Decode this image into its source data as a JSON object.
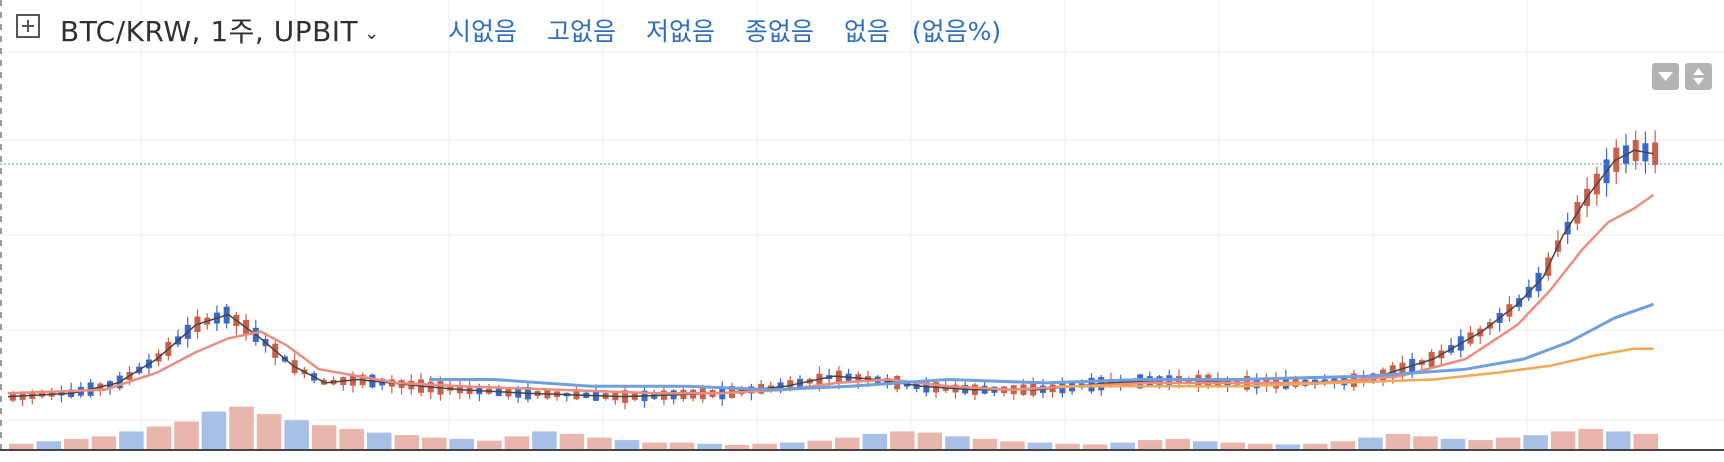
{
  "header": {
    "symbol": "BTC/KRW, 1주, UPBIT",
    "open": "시없음",
    "high": "고없음",
    "low": "저없음",
    "close": "종없음",
    "change": "없음",
    "change_pct": "(없음%)"
  },
  "colors": {
    "up": "#c9604a",
    "down": "#3a67c8",
    "ma_short": "#444444",
    "ma_mid": "#ec8d80",
    "ma_long": "#6f9fdf",
    "ma_longest": "#f1a755",
    "vol_up": "#e8b6ac",
    "vol_down": "#a9c0e6",
    "price_line": "#5b8ed6",
    "grid": "#e9eef3"
  },
  "chart_data": {
    "type": "candlestick",
    "title": "BTC/KRW, 1주, UPBIT",
    "grid": true,
    "price_line_level": 0.69,
    "series": [
      {
        "name": "",
        "kind": "ma_short",
        "points": [
          [
            0,
            0.01
          ],
          [
            20,
            0.02
          ],
          [
            34,
            0.05
          ],
          [
            46,
            0.12
          ],
          [
            58,
            0.22
          ],
          [
            68,
            0.25
          ],
          [
            78,
            0.18
          ],
          [
            88,
            0.1
          ],
          [
            98,
            0.05
          ],
          [
            108,
            0.06
          ],
          [
            118,
            0.05
          ],
          [
            128,
            0.04
          ],
          [
            140,
            0.03
          ],
          [
            160,
            0.02
          ],
          [
            190,
            0.01
          ],
          [
            220,
            0.02
          ],
          [
            240,
            0.04
          ],
          [
            255,
            0.07
          ],
          [
            268,
            0.06
          ],
          [
            282,
            0.04
          ],
          [
            298,
            0.03
          ],
          [
            318,
            0.03
          ],
          [
            340,
            0.05
          ],
          [
            362,
            0.06
          ],
          [
            380,
            0.05
          ],
          [
            400,
            0.05
          ],
          [
            420,
            0.06
          ],
          [
            440,
            0.12
          ],
          [
            455,
            0.2
          ],
          [
            466,
            0.28
          ],
          [
            474,
            0.36
          ],
          [
            480,
            0.48
          ],
          [
            488,
            0.6
          ],
          [
            496,
            0.7
          ],
          [
            502,
            0.73
          ],
          [
            508,
            0.72
          ]
        ]
      },
      {
        "name": "",
        "kind": "ma_mid",
        "points": [
          [
            0,
            0.02
          ],
          [
            30,
            0.03
          ],
          [
            46,
            0.08
          ],
          [
            58,
            0.14
          ],
          [
            68,
            0.18
          ],
          [
            78,
            0.2
          ],
          [
            86,
            0.16
          ],
          [
            96,
            0.09
          ],
          [
            108,
            0.07
          ],
          [
            120,
            0.05
          ],
          [
            140,
            0.04
          ],
          [
            170,
            0.03
          ],
          [
            200,
            0.02
          ],
          [
            220,
            0.02
          ],
          [
            240,
            0.03
          ],
          [
            256,
            0.05
          ],
          [
            272,
            0.06
          ],
          [
            290,
            0.04
          ],
          [
            310,
            0.03
          ],
          [
            330,
            0.04
          ],
          [
            352,
            0.05
          ],
          [
            380,
            0.05
          ],
          [
            405,
            0.05
          ],
          [
            430,
            0.07
          ],
          [
            450,
            0.12
          ],
          [
            466,
            0.22
          ],
          [
            476,
            0.32
          ],
          [
            486,
            0.44
          ],
          [
            494,
            0.52
          ],
          [
            502,
            0.56
          ],
          [
            508,
            0.6
          ]
        ]
      },
      {
        "name": "",
        "kind": "ma_long",
        "points": [
          [
            130,
            0.06
          ],
          [
            150,
            0.06
          ],
          [
            180,
            0.04
          ],
          [
            210,
            0.04
          ],
          [
            236,
            0.03
          ],
          [
            260,
            0.04
          ],
          [
            290,
            0.06
          ],
          [
            320,
            0.05
          ],
          [
            350,
            0.06
          ],
          [
            380,
            0.06
          ],
          [
            420,
            0.07
          ],
          [
            450,
            0.09
          ],
          [
            468,
            0.12
          ],
          [
            482,
            0.17
          ],
          [
            496,
            0.24
          ],
          [
            508,
            0.28
          ]
        ]
      },
      {
        "name": "",
        "kind": "ma_longest",
        "points": [
          [
            324,
            0.04
          ],
          [
            350,
            0.04
          ],
          [
            380,
            0.04
          ],
          [
            410,
            0.05
          ],
          [
            440,
            0.06
          ],
          [
            460,
            0.08
          ],
          [
            476,
            0.1
          ],
          [
            490,
            0.13
          ],
          [
            502,
            0.15
          ],
          [
            508,
            0.15
          ]
        ]
      }
    ],
    "volume": [
      0.1,
      0.14,
      0.18,
      0.22,
      0.3,
      0.38,
      0.46,
      0.62,
      0.7,
      0.58,
      0.48,
      0.4,
      0.34,
      0.28,
      0.24,
      0.2,
      0.18,
      0.15,
      0.22,
      0.3,
      0.26,
      0.2,
      0.16,
      0.12,
      0.12,
      0.1,
      0.08,
      0.1,
      0.12,
      0.15,
      0.2,
      0.26,
      0.3,
      0.28,
      0.22,
      0.18,
      0.14,
      0.12,
      0.1,
      0.09,
      0.12,
      0.16,
      0.18,
      0.14,
      0.12,
      0.1,
      0.09,
      0.1,
      0.14,
      0.2,
      0.26,
      0.22,
      0.18,
      0.16,
      0.2,
      0.24,
      0.3,
      0.34,
      0.3,
      0.26
    ]
  }
}
